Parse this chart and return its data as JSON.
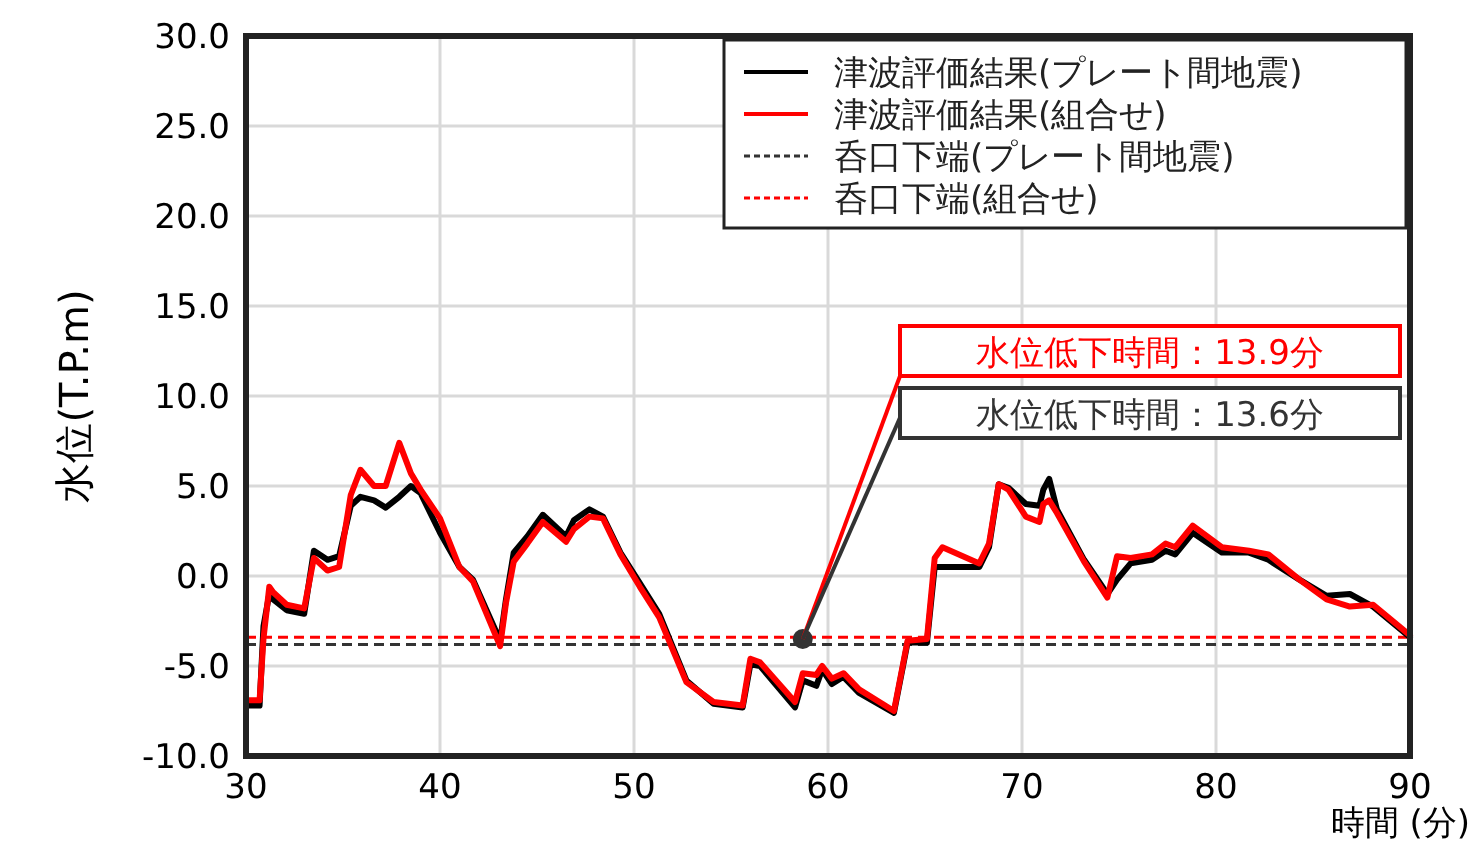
{
  "chart_data": {
    "type": "line",
    "xlabel": "時間 (分)",
    "ylabel": "水位(T.P.m)",
    "xlim": [
      30,
      90
    ],
    "xticks": [
      30,
      40,
      50,
      60,
      70,
      80,
      90
    ],
    "ylim": [
      -10,
      30
    ],
    "yticks": [
      {
        "value": -10,
        "label": "-10.0"
      },
      {
        "value": -5,
        "label": "-5.0"
      },
      {
        "value": 0,
        "label": "0.0"
      },
      {
        "value": 5,
        "label": "5.0"
      },
      {
        "value": 10,
        "label": "10.0"
      },
      {
        "value": 15,
        "label": "15.0"
      },
      {
        "value": 20,
        "label": "20.0"
      },
      {
        "value": 25,
        "label": "25.0"
      },
      {
        "value": 30,
        "label": "30.0"
      }
    ],
    "grid": true,
    "legend": "top right",
    "line_style": "solid",
    "marker": "none",
    "x": [
      30,
      30.7,
      30.9,
      31.2,
      31.4,
      32.1,
      33.0,
      33.5,
      34.2,
      34.8,
      35.4,
      35.9,
      36.6,
      37.2,
      37.9,
      38.5,
      39.0,
      40.0,
      41.0,
      41.7,
      43.1,
      43.4,
      43.8,
      44.5,
      45.3,
      46.5,
      46.9,
      47.7,
      48.4,
      49.3,
      50.3,
      51.3,
      52.7,
      54.1,
      55.6,
      56.0,
      56.5,
      58.3,
      58.7,
      59.4,
      59.7,
      60.2,
      60.8,
      61.6,
      63.4,
      64.1,
      65.1,
      65.5,
      65.9,
      67.8,
      68.3,
      68.8,
      69.3,
      70.2,
      70.9,
      71.1,
      71.4,
      71.8,
      73.2,
      74.4,
      74.9,
      75.6,
      76.7,
      77.4,
      77.9,
      78.8,
      80.3,
      81.7,
      82.7,
      84.3,
      85.7,
      86.9,
      88.1,
      90
    ],
    "series": [
      {
        "name": "津波評価結果(プレート間地震)",
        "color": "#000000",
        "values": [
          -7.2,
          -7.2,
          -2.8,
          -1.0,
          -1.3,
          -1.9,
          -2.1,
          1.4,
          0.9,
          1.1,
          3.9,
          4.4,
          4.2,
          3.8,
          4.4,
          5.0,
          4.6,
          2.4,
          0.5,
          -0.2,
          -3.6,
          -1.3,
          1.3,
          2.2,
          3.4,
          2.2,
          3.1,
          3.7,
          3.3,
          1.3,
          -0.4,
          -2.1,
          -5.8,
          -7.1,
          -7.3,
          -4.9,
          -5.0,
          -7.3,
          -5.8,
          -6.1,
          -5.2,
          -6.0,
          -5.6,
          -6.5,
          -7.6,
          -3.7,
          -3.7,
          0.5,
          0.5,
          0.5,
          1.6,
          5.1,
          4.9,
          4.0,
          3.9,
          4.8,
          5.4,
          3.7,
          0.9,
          -1.0,
          -0.2,
          0.7,
          0.9,
          1.4,
          1.2,
          2.4,
          1.3,
          1.3,
          0.9,
          -0.2,
          -1.1,
          -1.0,
          -1.7,
          -3.4
        ]
      },
      {
        "name": "津波評価結果(組合せ)",
        "color": "#ff0000",
        "values": [
          -6.9,
          -6.9,
          -3.5,
          -0.6,
          -0.9,
          -1.6,
          -1.8,
          1.0,
          0.3,
          0.5,
          4.5,
          5.9,
          5.0,
          5.0,
          7.4,
          5.7,
          4.8,
          3.2,
          0.5,
          -0.3,
          -3.9,
          -1.5,
          0.8,
          1.8,
          3.0,
          1.9,
          2.6,
          3.3,
          3.2,
          1.2,
          -0.6,
          -2.3,
          -5.9,
          -7.0,
          -7.2,
          -4.6,
          -4.8,
          -7.0,
          -5.4,
          -5.5,
          -5.0,
          -5.7,
          -5.4,
          -6.3,
          -7.5,
          -3.6,
          -3.5,
          1.0,
          1.6,
          0.7,
          1.8,
          5.1,
          4.8,
          3.3,
          3.0,
          4.0,
          4.2,
          3.5,
          0.8,
          -1.2,
          1.1,
          1.0,
          1.2,
          1.8,
          1.6,
          2.8,
          1.6,
          1.4,
          1.2,
          -0.2,
          -1.3,
          -1.7,
          -1.6,
          -3.3
        ]
      },
      {
        "type": "scatter",
        "marker": "circle",
        "color": "#333333",
        "x": [
          58.7
        ],
        "values": [
          -3.5
        ]
      }
    ],
    "ref_lines": [
      {
        "axis": "y",
        "value": -3.8,
        "label": "呑口下端(プレート間地震)",
        "color": "#333333",
        "line_style": "dashed"
      },
      {
        "axis": "y",
        "value": -3.4,
        "label": "呑口下端(組合せ)",
        "color": "#ff0000",
        "line_style": "dashed"
      }
    ],
    "annotations": [
      "水位低下時間：13.9分",
      "水位低下時間：13.6分"
    ]
  }
}
